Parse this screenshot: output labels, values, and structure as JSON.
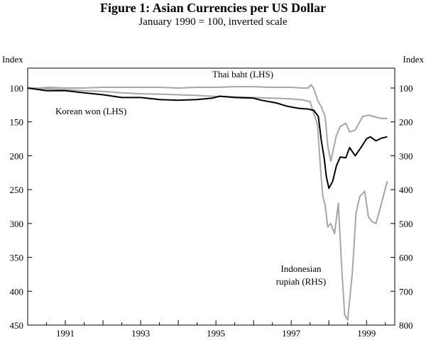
{
  "chart_data": {
    "type": "line",
    "title": "Figure 1: Asian Currencies per US Dollar",
    "subtitle": "January 1990 = 100, inverted scale",
    "left_axis": {
      "label": "Index",
      "range": [
        100,
        450
      ],
      "ticks": [
        100,
        150,
        200,
        250,
        300,
        350,
        400,
        450
      ],
      "inverted": true
    },
    "right_axis": {
      "label": "Index",
      "range": [
        100,
        800
      ],
      "ticks": [
        100,
        200,
        300,
        400,
        500,
        600,
        700,
        800
      ],
      "inverted": true
    },
    "x_axis": {
      "range": [
        1990.0,
        1999.75
      ],
      "ticks": [
        1991,
        1993,
        1995,
        1997,
        1999
      ],
      "tick_labels": [
        "1991",
        "1993",
        "1995",
        "1997",
        "1999"
      ]
    },
    "grid": false,
    "series": [
      {
        "name": "Thai baht (LHS)",
        "axis": "left",
        "color": "#a6a6a6",
        "label_lines": [
          "Thai baht (LHS)"
        ],
        "x": [
          1990.0,
          1990.3,
          1990.6,
          1991.0,
          1991.5,
          1992.0,
          1992.5,
          1993.0,
          1993.5,
          1994.0,
          1994.5,
          1995.0,
          1995.5,
          1996.0,
          1996.5,
          1997.0,
          1997.3,
          1997.45,
          1997.52,
          1997.6,
          1997.7,
          1997.8,
          1997.9,
          1997.97,
          1998.05,
          1998.2,
          1998.3,
          1998.45,
          1998.55,
          1998.7,
          1998.9,
          1999.05,
          1999.25,
          1999.4,
          1999.55
        ],
        "y": [
          100,
          100,
          99,
          100,
          100,
          99,
          99,
          99,
          99,
          100,
          99,
          99,
          98,
          98,
          99,
          99,
          100,
          100,
          95,
          101,
          118,
          128,
          142,
          185,
          208,
          170,
          157,
          152,
          165,
          162,
          142,
          140,
          143,
          145,
          145
        ]
      },
      {
        "name": "Korean won (LHS)",
        "axis": "left",
        "color": "#000000",
        "label_lines": [
          "Korean won (LHS)"
        ],
        "x": [
          1990.0,
          1990.5,
          1991.0,
          1991.5,
          1992.0,
          1992.5,
          1993.0,
          1993.5,
          1994.0,
          1994.5,
          1994.9,
          1995.1,
          1995.5,
          1996.0,
          1996.2,
          1996.6,
          1996.9,
          1997.2,
          1997.45,
          1997.6,
          1997.72,
          1997.8,
          1997.88,
          1997.93,
          1998.0,
          1998.1,
          1998.2,
          1998.3,
          1998.45,
          1998.55,
          1998.7,
          1998.85,
          1999.0,
          1999.1,
          1999.25,
          1999.4,
          1999.55
        ],
        "y": [
          100,
          104,
          104,
          107,
          110,
          114,
          114,
          117,
          118,
          117,
          115,
          112,
          114,
          115,
          118,
          122,
          127,
          130,
          131,
          133,
          142,
          178,
          205,
          230,
          248,
          238,
          215,
          202,
          203,
          188,
          200,
          188,
          175,
          172,
          178,
          174,
          172
        ]
      },
      {
        "name": "Indonesian rupiah (RHS)",
        "axis": "right",
        "color": "#a6a6a6",
        "label_lines": [
          "Indonesian",
          "rupiah (RHS)"
        ],
        "x": [
          1990.0,
          1990.5,
          1991.0,
          1991.5,
          1992.0,
          1992.5,
          1993.0,
          1993.5,
          1994.0,
          1994.5,
          1995.0,
          1995.5,
          1996.0,
          1996.5,
          1997.0,
          1997.3,
          1997.5,
          1997.6,
          1997.7,
          1997.78,
          1997.84,
          1997.9,
          1997.97,
          1998.05,
          1998.15,
          1998.25,
          1998.35,
          1998.42,
          1998.5,
          1998.62,
          1998.72,
          1998.82,
          1998.95,
          1999.05,
          1999.15,
          1999.25,
          1999.35,
          1999.55
        ],
        "y": [
          100,
          102,
          105,
          108,
          110,
          114,
          117,
          118,
          120,
          122,
          125,
          126,
          128,
          130,
          132,
          135,
          140,
          175,
          210,
          340,
          420,
          445,
          510,
          500,
          530,
          440,
          650,
          770,
          785,
          650,
          470,
          420,
          405,
          480,
          495,
          500,
          460,
          375
        ]
      }
    ]
  }
}
